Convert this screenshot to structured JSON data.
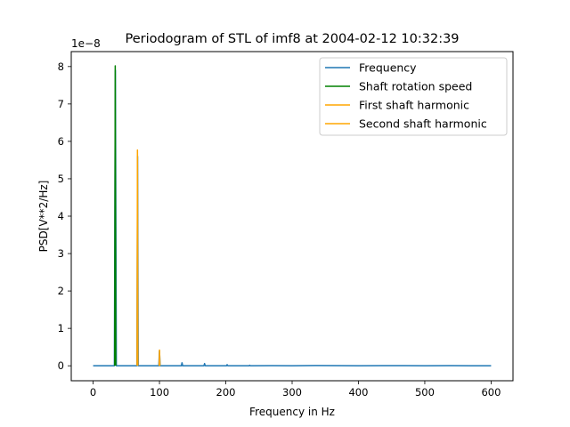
{
  "chart_data": {
    "type": "line",
    "title": "Periodogram of STL of imf8 at 2004-02-12 10:32:39",
    "xlabel": "Frequency in Hz",
    "ylabel": "PSD[V**2/Hz]",
    "y_offset_label": "1e−8",
    "xlim": [
      -33,
      633
    ],
    "ylim": [
      -0.4,
      8.4
    ],
    "y_scale_exponent": -8,
    "x_ticks": [
      0,
      100,
      200,
      300,
      400,
      500,
      600
    ],
    "x_tick_labels": [
      "0",
      "100",
      "200",
      "300",
      "400",
      "500",
      "600"
    ],
    "y_ticks": [
      0,
      1,
      2,
      3,
      4,
      5,
      6,
      7,
      8
    ],
    "y_tick_labels": [
      "0",
      "1",
      "2",
      "3",
      "4",
      "5",
      "6",
      "7",
      "8"
    ],
    "grid": false,
    "legend_position": "top-right",
    "series": [
      {
        "name": "Frequency",
        "color": "#1f77b4",
        "x": [
          0,
          32,
          33.5,
          35,
          66,
          67,
          68,
          99,
          100,
          101,
          133,
          134,
          135,
          167,
          168,
          169,
          201,
          202,
          203,
          235,
          236,
          237,
          270,
          300,
          335,
          370,
          400,
          435,
          470,
          500,
          535,
          570,
          600
        ],
        "y": [
          0,
          0,
          7.9,
          0,
          0,
          5.6,
          0,
          0,
          0.4,
          0,
          0,
          0.08,
          0,
          0,
          0.06,
          0,
          0,
          0.03,
          0,
          0,
          0.015,
          0,
          0.005,
          0,
          0.006,
          0.004,
          0,
          0.005,
          0.003,
          0,
          0.004,
          0.002,
          0
        ]
      },
      {
        "name": "Shaft rotation speed",
        "color": "#008000",
        "x": [
          32.5,
          33.3,
          34.1
        ],
        "y": [
          0,
          8.02,
          0
        ]
      },
      {
        "name": "First shaft harmonic",
        "color": "#ffa500",
        "x": [
          66.2,
          66.8,
          67.4
        ],
        "y": [
          0,
          5.77,
          0
        ]
      },
      {
        "name": "Second shaft harmonic",
        "color": "#ffa500",
        "x": [
          99.5,
          100.1,
          100.7
        ],
        "y": [
          0,
          0.42,
          0
        ]
      }
    ]
  }
}
